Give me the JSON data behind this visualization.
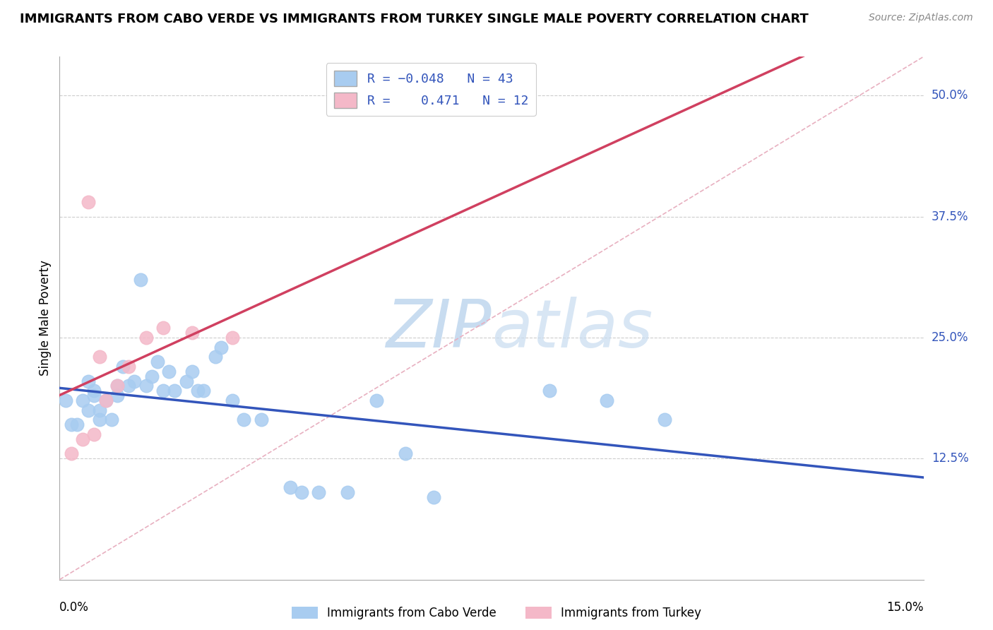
{
  "title": "IMMIGRANTS FROM CABO VERDE VS IMMIGRANTS FROM TURKEY SINGLE MALE POVERTY CORRELATION CHART",
  "source": "Source: ZipAtlas.com",
  "ylabel": "Single Male Poverty",
  "xlim": [
    0.0,
    0.15
  ],
  "ylim": [
    0.0,
    0.54
  ],
  "cabo_verde_R": -0.048,
  "cabo_verde_N": 43,
  "turkey_R": 0.471,
  "turkey_N": 12,
  "cabo_verde_color": "#A8CCF0",
  "turkey_color": "#F4B8C8",
  "cabo_verde_line_color": "#3355BB",
  "turkey_line_color": "#D04060",
  "background_color": "#FFFFFF",
  "grid_color": "#CCCCCC",
  "cabo_verde_x": [
    0.001,
    0.002,
    0.003,
    0.004,
    0.005,
    0.005,
    0.006,
    0.006,
    0.007,
    0.007,
    0.008,
    0.009,
    0.01,
    0.01,
    0.011,
    0.012,
    0.013,
    0.014,
    0.015,
    0.016,
    0.017,
    0.018,
    0.019,
    0.02,
    0.022,
    0.023,
    0.024,
    0.025,
    0.027,
    0.028,
    0.03,
    0.032,
    0.035,
    0.04,
    0.042,
    0.045,
    0.05,
    0.055,
    0.06,
    0.065,
    0.085,
    0.095,
    0.105
  ],
  "cabo_verde_y": [
    0.185,
    0.16,
    0.16,
    0.185,
    0.205,
    0.175,
    0.19,
    0.195,
    0.175,
    0.165,
    0.185,
    0.165,
    0.19,
    0.2,
    0.22,
    0.2,
    0.205,
    0.31,
    0.2,
    0.21,
    0.225,
    0.195,
    0.215,
    0.195,
    0.205,
    0.215,
    0.195,
    0.195,
    0.23,
    0.24,
    0.185,
    0.165,
    0.165,
    0.095,
    0.09,
    0.09,
    0.09,
    0.185,
    0.13,
    0.085,
    0.195,
    0.185,
    0.165
  ],
  "turkey_x": [
    0.002,
    0.004,
    0.005,
    0.006,
    0.007,
    0.008,
    0.01,
    0.012,
    0.015,
    0.018,
    0.023,
    0.03
  ],
  "turkey_y": [
    0.13,
    0.145,
    0.39,
    0.15,
    0.23,
    0.185,
    0.2,
    0.22,
    0.25,
    0.26,
    0.255,
    0.25
  ],
  "ytick_positions": [
    0.125,
    0.25,
    0.375,
    0.5
  ],
  "ytick_labels": [
    "12.5%",
    "25.0%",
    "37.5%",
    "50.0%"
  ]
}
